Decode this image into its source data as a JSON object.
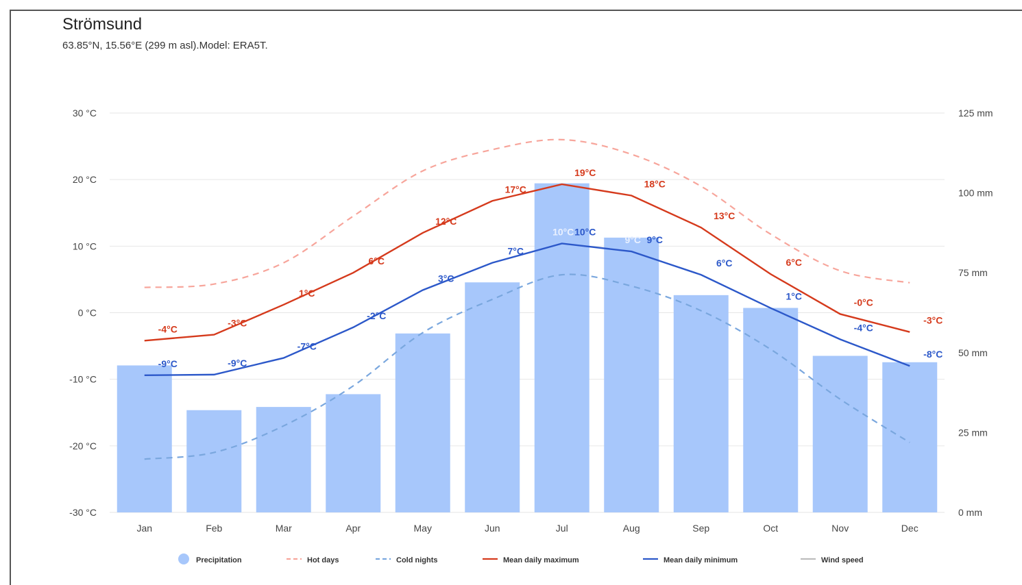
{
  "header": {
    "title": "Strömsund",
    "subtitle": "63.85°N, 15.56°E (299 m asl).Model: ERA5T."
  },
  "colors": {
    "precip": "#a7c7fb",
    "hot": "#f7a59b",
    "cold": "#7aa7de",
    "max": "#d53a1c",
    "min": "#2c58c9",
    "wind": "#bdbdbd",
    "grid": "#e6e6e6"
  },
  "chart_data": {
    "type": "bar",
    "categories": [
      "Jan",
      "Feb",
      "Mar",
      "Apr",
      "May",
      "Jun",
      "Jul",
      "Aug",
      "Sep",
      "Oct",
      "Nov",
      "Dec"
    ],
    "y_left": {
      "min": -30,
      "max": 30,
      "step": 10,
      "tick_labels": [
        "30 °C",
        "20 °C",
        "10 °C",
        "0 °C",
        "-10 °C",
        "-20 °C",
        "-30 °C"
      ]
    },
    "y_right": {
      "min": 0,
      "max": 125,
      "step": 25,
      "tick_labels": [
        "125 mm",
        "100 mm",
        "75 mm",
        "50 mm",
        "25 mm",
        "0 mm"
      ]
    },
    "series": [
      {
        "name": "Precipitation",
        "kind": "bar",
        "axis": "right",
        "values": [
          46,
          32,
          33,
          37,
          56,
          72,
          103,
          86,
          68,
          64,
          49,
          47
        ]
      },
      {
        "name": "Hot days",
        "kind": "dashed-line",
        "axis": "left",
        "values": [
          3.8,
          4.3,
          7.5,
          14.5,
          21.3,
          24.5,
          26,
          23.8,
          19,
          11.8,
          6.3,
          4.5
        ]
      },
      {
        "name": "Cold nights",
        "kind": "dashed-line",
        "axis": "left",
        "values": [
          -22,
          -21,
          -17,
          -11,
          -3,
          2,
          5.7,
          4,
          0.3,
          -5.5,
          -13,
          -19.5
        ]
      },
      {
        "name": "Mean daily maximum",
        "kind": "line",
        "axis": "left",
        "values": [
          -4.2,
          -3.3,
          1.2,
          6,
          12,
          16.8,
          19.3,
          17.6,
          12.8,
          5.8,
          -0.2,
          -2.9
        ],
        "labels": [
          "-4°C",
          "-3°C",
          "1°C",
          "6°C",
          "12°C",
          "17°C",
          "19°C",
          "18°C",
          "13°C",
          "6°C",
          "-0°C",
          "-3°C"
        ]
      },
      {
        "name": "Mean daily minimum",
        "kind": "line",
        "axis": "left",
        "values": [
          -9.4,
          -9.3,
          -6.8,
          -2.2,
          3.4,
          7.5,
          10.4,
          9.2,
          5.7,
          0.7,
          -4,
          -8
        ],
        "labels": [
          "-9°C",
          "-9°C",
          "-7°C",
          "-2°C",
          "3°C",
          "7°C",
          "10°C",
          "9°C",
          "6°C",
          "1°C",
          "-4°C",
          "-8°C"
        ]
      },
      {
        "name": "Wind speed",
        "kind": "legend-only"
      }
    ],
    "extra_labels": [
      {
        "month_index": 6,
        "text": "10°C"
      },
      {
        "month_index": 7,
        "text": "9°C"
      }
    ],
    "grid": true,
    "legend_position": "bottom"
  }
}
